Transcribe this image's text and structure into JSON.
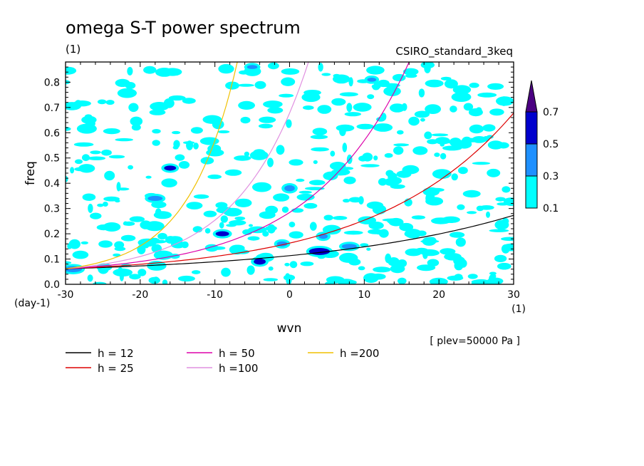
{
  "chart_data": {
    "type": "contour",
    "title": "omega S-T power spectrum",
    "subtitle_left": "(1)",
    "subtitle_right": "CSIRO_standard_3keq",
    "xlabel": "wvn",
    "ylabel": "freq",
    "x_unit": "(1)",
    "y_unit": "(day-1)",
    "xlim": [
      -30,
      30
    ],
    "ylim": [
      0.0,
      0.88
    ],
    "x_ticks": [
      -30,
      -20,
      -10,
      0,
      10,
      20,
      30
    ],
    "x_tick_labels": [
      "-30",
      "-20",
      "-10",
      "0",
      "10",
      "20",
      "30"
    ],
    "y_ticks": [
      0.0,
      0.1,
      0.2,
      0.3,
      0.4,
      0.5,
      0.6,
      0.7,
      0.8
    ],
    "y_tick_labels": [
      "0.0",
      "0.1",
      "0.2",
      "0.3",
      "0.4",
      "0.5",
      "0.6",
      "0.7",
      "0.8"
    ],
    "annotation": "[ plev=50000 Pa ]",
    "colorbar": {
      "levels": [
        "0.1",
        "0.3",
        "0.5",
        "0.7"
      ],
      "colors": [
        "#00ffff",
        "#1e90ff",
        "#0000cd",
        "#4b0082"
      ]
    },
    "dispersion_curves": [
      {
        "name": "h = 12",
        "equivalent_depth": 12,
        "color": "#000000"
      },
      {
        "name": "h = 25",
        "equivalent_depth": 25,
        "color": "#dd0000"
      },
      {
        "name": "h = 50",
        "equivalent_depth": 50,
        "color": "#dd00aa"
      },
      {
        "name": "h =100",
        "equivalent_depth": 100,
        "color": "#e090e0"
      },
      {
        "name": "h =200",
        "equivalent_depth": 200,
        "color": "#f0c000"
      }
    ],
    "filled_regions": [
      {
        "x": -29,
        "y": 0.06,
        "rx": 1.2,
        "ry": 0.012,
        "level": 1
      },
      {
        "x": -18,
        "y": 0.34,
        "rx": 1.0,
        "ry": 0.01,
        "level": 1
      },
      {
        "x": -16,
        "y": 0.46,
        "rx": 0.8,
        "ry": 0.01,
        "level": 2
      },
      {
        "x": -9,
        "y": 0.2,
        "rx": 0.9,
        "ry": 0.01,
        "level": 2
      },
      {
        "x": -5,
        "y": 0.86,
        "rx": 0.7,
        "ry": 0.008,
        "level": 1
      },
      {
        "x": -4,
        "y": 0.09,
        "rx": 0.8,
        "ry": 0.012,
        "level": 2
      },
      {
        "x": -1,
        "y": 0.16,
        "rx": 0.7,
        "ry": 0.01,
        "level": 1
      },
      {
        "x": 4,
        "y": 0.13,
        "rx": 1.4,
        "ry": 0.014,
        "level": 2
      },
      {
        "x": 4.5,
        "y": 0.19,
        "rx": 0.6,
        "ry": 0.01,
        "level": 1
      },
      {
        "x": 8,
        "y": 0.15,
        "rx": 1.0,
        "ry": 0.01,
        "level": 1
      },
      {
        "x": 11,
        "y": 0.81,
        "rx": 0.6,
        "ry": 0.008,
        "level": 1
      },
      {
        "x": 0,
        "y": 0.38,
        "rx": 0.7,
        "ry": 0.012,
        "level": 1
      }
    ]
  },
  "legend": [
    {
      "label": "h = 12",
      "color": "#000000"
    },
    {
      "label": "h = 25",
      "color": "#dd0000"
    },
    {
      "label": "h = 50",
      "color": "#dd00aa"
    },
    {
      "label": "h =100",
      "color": "#e090e0"
    },
    {
      "label": "h =200",
      "color": "#f0c000"
    }
  ]
}
